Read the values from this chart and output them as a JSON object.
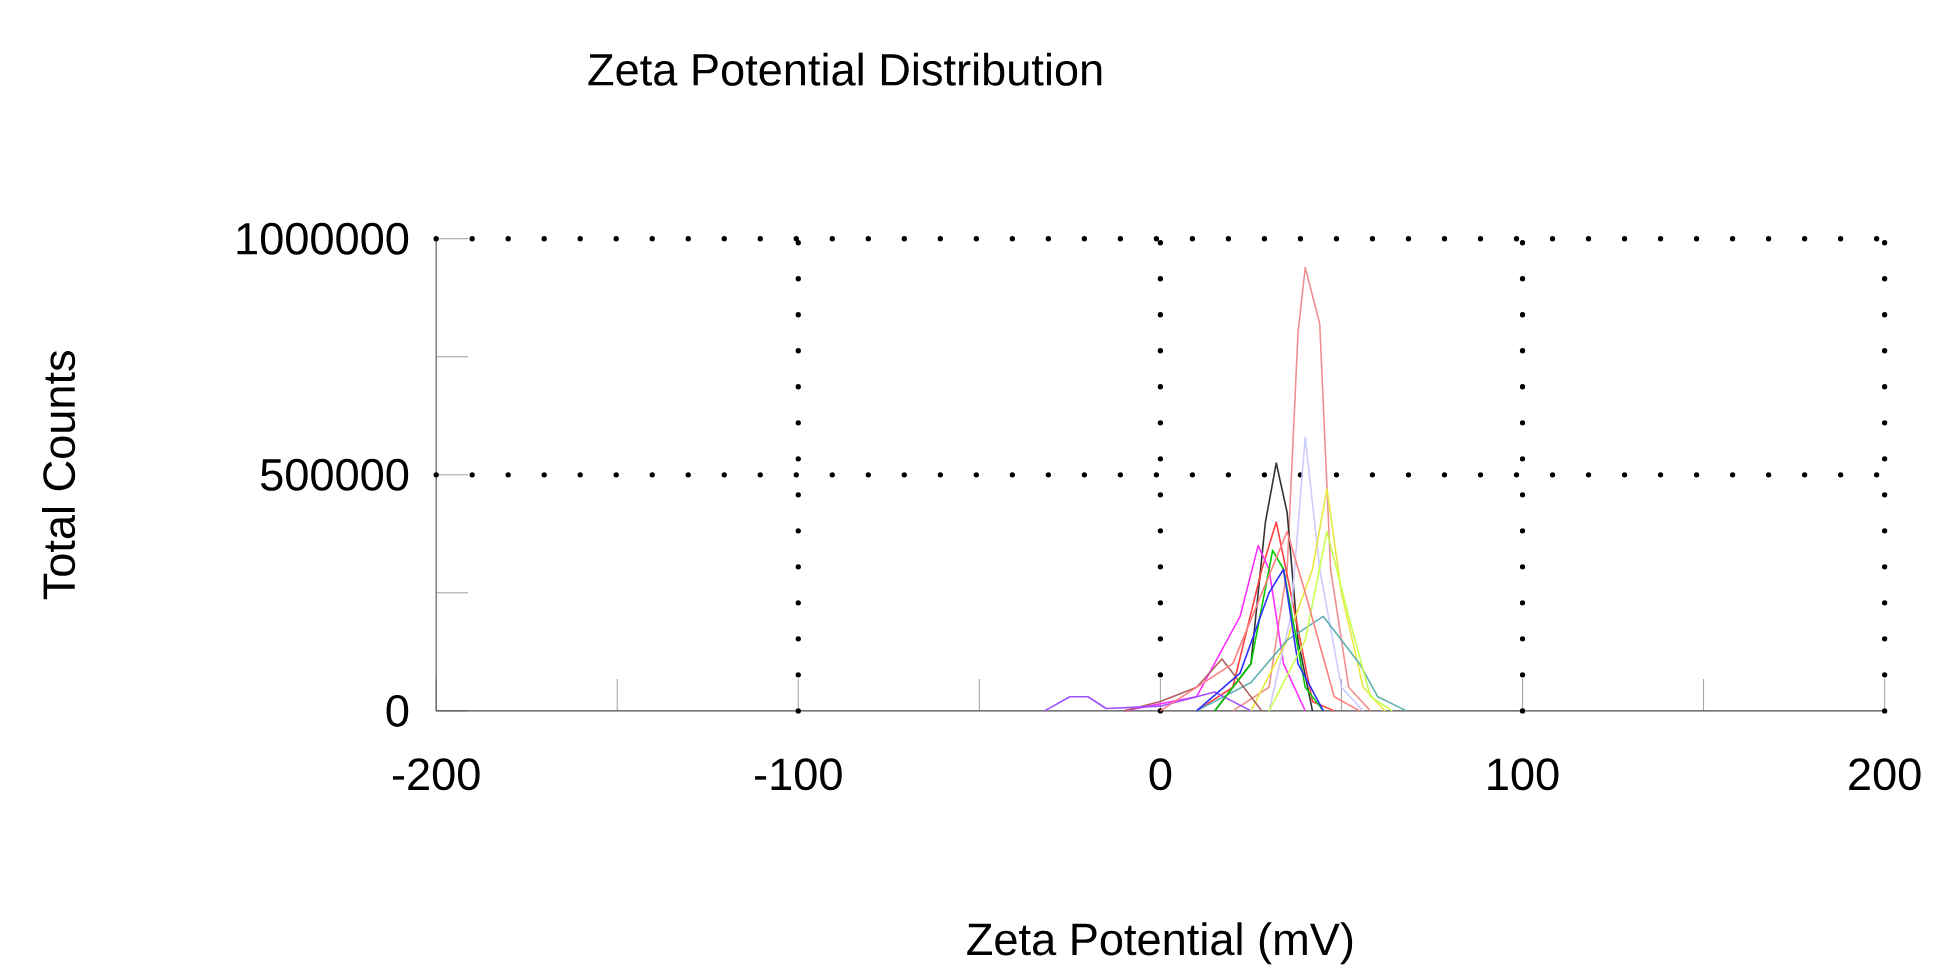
{
  "chart_data": {
    "type": "line",
    "title": "Zeta Potential Distribution",
    "xlabel": "Zeta Potential (mV)",
    "ylabel": "Total Counts",
    "xlim": [
      -200,
      200
    ],
    "ylim": [
      0,
      1000000
    ],
    "xticks": [
      -200,
      {
        "value": -150,
        "label": null
      },
      -100,
      {
        "value": -50,
        "label": null
      },
      0,
      {
        "value": 50,
        "label": null
      },
      100,
      {
        "value": 150,
        "label": null
      },
      200
    ],
    "yticks": [
      0,
      {
        "value": 250000,
        "label": null
      },
      500000,
      {
        "value": 750000,
        "label": null
      },
      1000000
    ],
    "grid": true,
    "series": [
      {
        "color": "#f09090",
        "x": [
          20,
          30,
          35,
          38,
          40,
          44,
          47,
          52,
          58
        ],
        "values": [
          0,
          50000,
          300000,
          800000,
          939000,
          820000,
          300000,
          50000,
          0
        ]
      },
      {
        "color": "#333333",
        "x": [
          15,
          25,
          29,
          32,
          35,
          38,
          42
        ],
        "values": [
          0,
          100000,
          400000,
          525000,
          420000,
          150000,
          0
        ]
      },
      {
        "color": "#ff4040",
        "x": [
          10,
          20,
          28,
          32,
          36,
          42,
          48
        ],
        "values": [
          0,
          50000,
          300000,
          400000,
          250000,
          20000,
          0
        ]
      },
      {
        "color": "#ff30ff",
        "x": [
          -10,
          10,
          22,
          27,
          30,
          34,
          40
        ],
        "values": [
          0,
          30000,
          200000,
          350000,
          300000,
          100000,
          0
        ]
      },
      {
        "color": "#ccccff",
        "x": [
          30,
          36,
          40,
          44,
          50,
          56
        ],
        "values": [
          0,
          200000,
          580000,
          300000,
          50000,
          0
        ]
      },
      {
        "color": "#e8e840",
        "x": [
          25,
          35,
          42,
          46,
          50,
          56,
          62
        ],
        "values": [
          0,
          150000,
          300000,
          470000,
          250000,
          50000,
          0
        ]
      },
      {
        "color": "#60b0b0",
        "x": [
          10,
          25,
          35,
          45,
          55,
          60,
          68
        ],
        "values": [
          0,
          60000,
          150000,
          200000,
          100000,
          30000,
          0
        ]
      },
      {
        "color": "#b06060",
        "x": [
          -10,
          0,
          10,
          17,
          22,
          28
        ],
        "values": [
          0,
          20000,
          50000,
          110000,
          60000,
          0
        ]
      },
      {
        "color": "#a050ff",
        "x": [
          -32,
          -25,
          -20,
          -15,
          0,
          15,
          25
        ],
        "values": [
          0,
          30000,
          30000,
          5000,
          10000,
          40000,
          0
        ]
      },
      {
        "color": "#00cc00",
        "x": [
          15,
          25,
          31,
          34,
          40,
          45
        ],
        "values": [
          0,
          100000,
          340000,
          300000,
          50000,
          0
        ]
      },
      {
        "color": "#3030ff",
        "x": [
          10,
          22,
          30,
          34,
          38,
          45
        ],
        "values": [
          0,
          80000,
          250000,
          300000,
          100000,
          0
        ]
      },
      {
        "color": "#c8ff50",
        "x": [
          30,
          40,
          46,
          52,
          58,
          64
        ],
        "values": [
          0,
          150000,
          380000,
          200000,
          30000,
          0
        ]
      },
      {
        "color": "#ff8080",
        "x": [
          0,
          20,
          35,
          40,
          48,
          55
        ],
        "values": [
          0,
          100000,
          380000,
          250000,
          30000,
          0
        ]
      }
    ]
  }
}
